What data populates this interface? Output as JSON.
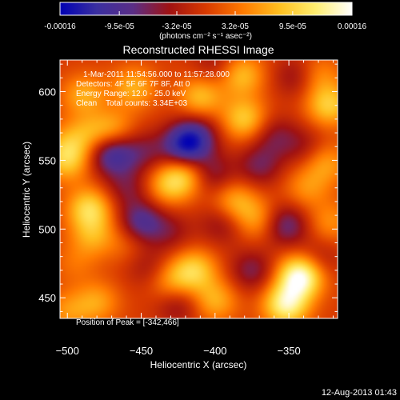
{
  "colorbar": {
    "tick_labels": [
      "-0.00016",
      "-9.5e-05",
      "-3.2e-05",
      "3.2e-05",
      "9.5e-05",
      "0.00016"
    ],
    "tick_values": [
      -0.00016,
      -9.5e-05,
      -3.2e-05,
      3.2e-05,
      9.5e-05,
      0.00016
    ],
    "range": [
      -0.00016,
      0.00016
    ],
    "unit_label": "(photons cm⁻² s⁻¹ asec⁻²)",
    "colors": [
      "#0000b4",
      "#3a2fa0",
      "#5a2e86",
      "#a01212",
      "#d83a00",
      "#ff7a00",
      "#ffbf1f",
      "#ffee70",
      "#ffffff"
    ]
  },
  "chart_data": {
    "type": "heatmap",
    "title": "Reconstructed RHESSI Image",
    "xlabel": "Heliocentric X (arcsec)",
    "ylabel": "Heliocentric Y (arcsec)",
    "xlim": [
      -505,
      -317
    ],
    "ylim": [
      435,
      623
    ],
    "x_ticks": [
      -500,
      -450,
      -400,
      -350
    ],
    "y_ticks": [
      450,
      500,
      550,
      600
    ],
    "x_tick_labels": [
      "−500",
      "−450",
      "−400",
      "−350"
    ],
    "y_tick_labels": [
      "450",
      "500",
      "550",
      "600"
    ],
    "grid": false,
    "annotations": [
      "1-Mar-2011 11:54:56.000 to 11:57:28.000",
      "Detectors: 4F 5F 6F 7F 8F, Att 0",
      "Energy Range: 12.0 - 25.0 keV",
      "Clean    Total counts: 3.34E+03"
    ],
    "peak_label": "Position of Peak = [-342,466]",
    "peak": [
      -342,
      466
    ],
    "blobs": [
      {
        "x": -342,
        "y": 466,
        "value": 0.00016
      },
      {
        "x": -352,
        "y": 445,
        "value": 0.00013
      },
      {
        "x": -488,
        "y": 596,
        "value": 9e-05
      },
      {
        "x": -470,
        "y": 572,
        "value": 7e-05
      },
      {
        "x": -455,
        "y": 603,
        "value": 7e-05
      },
      {
        "x": -410,
        "y": 596,
        "value": 8e-05
      },
      {
        "x": -382,
        "y": 612,
        "value": 8e-05
      },
      {
        "x": -380,
        "y": 580,
        "value": 9e-05
      },
      {
        "x": -323,
        "y": 590,
        "value": 9e-05
      },
      {
        "x": -330,
        "y": 612,
        "value": 5e-05
      },
      {
        "x": -500,
        "y": 549,
        "value": 7e-05
      },
      {
        "x": -485,
        "y": 515,
        "value": 0.0001
      },
      {
        "x": -483,
        "y": 495,
        "value": 6e-05
      },
      {
        "x": -420,
        "y": 540,
        "value": 8e-05
      },
      {
        "x": -432,
        "y": 532,
        "value": 7e-05
      },
      {
        "x": -414,
        "y": 470,
        "value": 9e-05
      },
      {
        "x": -430,
        "y": 462,
        "value": 6e-05
      },
      {
        "x": -400,
        "y": 448,
        "value": 7e-05
      },
      {
        "x": -387,
        "y": 520,
        "value": 7e-05
      },
      {
        "x": -372,
        "y": 507,
        "value": 6e-05
      },
      {
        "x": -338,
        "y": 530,
        "value": 5e-05
      },
      {
        "x": -325,
        "y": 548,
        "value": 6e-05
      },
      {
        "x": -322,
        "y": 505,
        "value": 5e-05
      },
      {
        "x": -480,
        "y": 447,
        "value": 6e-05
      },
      {
        "x": -500,
        "y": 440,
        "value": 5e-05
      },
      {
        "x": -495,
        "y": 475,
        "value": 3e-05
      },
      {
        "x": -460,
        "y": 490,
        "value": 3e-05
      },
      {
        "x": -500,
        "y": 560,
        "value": 5e-05
      },
      {
        "x": -485,
        "y": 590,
        "value": -3e-05
      },
      {
        "x": -470,
        "y": 555,
        "value": -0.00011
      },
      {
        "x": -448,
        "y": 556,
        "value": -5e-05
      },
      {
        "x": -420,
        "y": 560,
        "value": -0.00013
      },
      {
        "x": -412,
        "y": 570,
        "value": -6e-05
      },
      {
        "x": -402,
        "y": 540,
        "value": -6e-05
      },
      {
        "x": -450,
        "y": 505,
        "value": -9e-05
      },
      {
        "x": -430,
        "y": 498,
        "value": -4e-05
      },
      {
        "x": -445,
        "y": 472,
        "value": -4e-05
      },
      {
        "x": -375,
        "y": 470,
        "value": -6e-05
      },
      {
        "x": -370,
        "y": 546,
        "value": -6e-05
      },
      {
        "x": -352,
        "y": 503,
        "value": -8e-05
      },
      {
        "x": -360,
        "y": 568,
        "value": -5e-05
      },
      {
        "x": -340,
        "y": 560,
        "value": -4e-05
      },
      {
        "x": -395,
        "y": 504,
        "value": -5e-05
      },
      {
        "x": -330,
        "y": 478,
        "value": -4e-05
      },
      {
        "x": -345,
        "y": 611,
        "value": -5e-05
      },
      {
        "x": -425,
        "y": 445,
        "value": -5e-05
      },
      {
        "x": -460,
        "y": 530,
        "value": -5e-05
      },
      {
        "x": -400,
        "y": 620,
        "value": -4e-05
      },
      {
        "x": -487,
        "y": 570,
        "value": 5e-05
      }
    ]
  },
  "footer_date": "12-Aug-2013 01:43"
}
